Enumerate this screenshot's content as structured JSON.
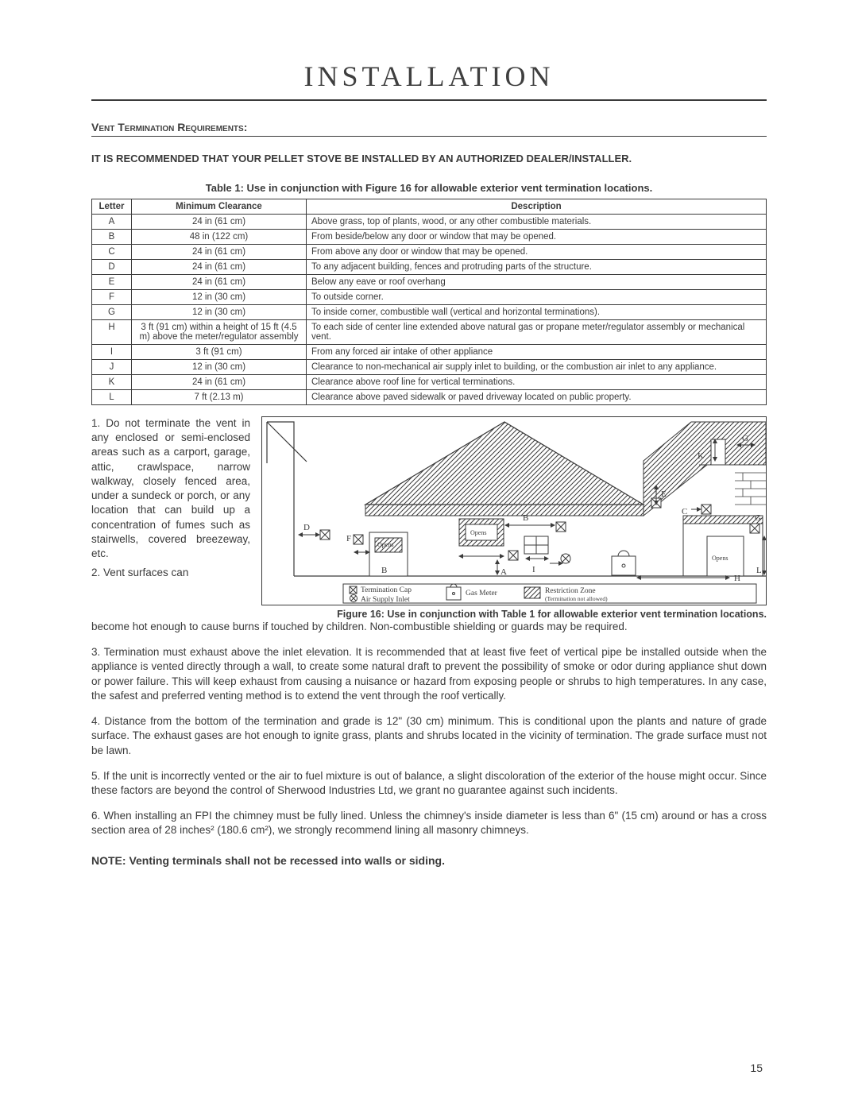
{
  "title": "Installation",
  "section_heading": "Vent Termination Requirements:",
  "recommend": "IT IS RECOMMENDED THAT YOUR PELLET STOVE BE INSTALLED BY AN AUTHORIZED DEALER/INSTALLER.",
  "table_caption": "Table 1: Use in conjunction with Figure 16 for allowable exterior vent termination locations.",
  "table": {
    "headers": [
      "Letter",
      "Minimum Clearance",
      "Description"
    ],
    "rows": [
      [
        "A",
        "24 in (61 cm)",
        "Above grass, top of plants, wood, or any other combustible materials."
      ],
      [
        "B",
        "48 in  (122 cm)",
        "From beside/below any door or window that may be opened."
      ],
      [
        "C",
        "24 in (61 cm)",
        "From above any door or window that may be opened."
      ],
      [
        "D",
        "24 in (61 cm)",
        "To any adjacent building, fences and protruding parts of the structure."
      ],
      [
        "E",
        "24 in (61 cm)",
        "Below any eave or roof overhang"
      ],
      [
        "F",
        "12 in (30 cm)",
        "To outside corner."
      ],
      [
        "G",
        "12 in (30 cm)",
        "To inside corner, combustible wall (vertical and horizontal terminations)."
      ],
      [
        "H",
        "3 ft (91 cm) within a height of 15 ft (4.5 m) above the meter/regulator assembly",
        "To each side of center line extended above natural gas or propane meter/regulator assembly or mechanical vent."
      ],
      [
        "I",
        "3 ft (91 cm)",
        "From any forced air intake of other appliance"
      ],
      [
        "J",
        "12 in (30 cm)",
        "Clearance to non-mechanical air supply inlet to building, or the combustion air inlet to any appliance."
      ],
      [
        "K",
        "24 in (61 cm)",
        "Clearance above roof line for vertical terminations."
      ],
      [
        "L",
        "7 ft (2.13 m)",
        "Clearance above paved sidewalk or paved driveway located on public property."
      ]
    ]
  },
  "notes": {
    "n1": "1.  Do not terminate the vent in any enclosed or semi-enclosed areas such as a carport, garage, attic, crawlspace, narrow walkway, closely fenced area, under a sundeck or porch, or any location that can build up a concentration of fumes such as stairwells, covered breezeway, etc.",
    "n2a": "2.   Vent surfaces can",
    "n2b": "become hot enough to cause burns if touched by children. Non-combustible shielding or guards may be required.",
    "n3": "3.  Termination must exhaust above the inlet elevation. It is recommended that at least five feet of vertical pipe be installed outside when the appliance is vented directly through a wall, to create some natural draft to prevent the possibility of smoke or odor during appliance shut down or power failure. This will keep exhaust from causing a nuisance or hazard from exposing people or shrubs to high temperatures. In any case, the safest and preferred venting method is to extend the vent through the roof vertically.",
    "n4": "4.  Distance from the bottom of the termination and grade is 12\" (30 cm) minimum. This is conditional upon the plants and nature of grade surface. The exhaust gases are hot enough to ignite grass, plants and shrubs located in the vicinity of termination. The grade surface must not be lawn.",
    "n5": "5.  If the unit is incorrectly vented or the air to fuel mixture is out of balance, a slight discoloration of the exterior of the house might occur. Since these factors are beyond the control of Sherwood Industries Ltd, we grant no guarantee against such incidents.",
    "n6": "6. When installing an FPI the chimney must be fully lined. Unless the chimney's inside diameter is less than 6\" (15 cm) around or has a cross section area of 28 inches² (180.6 cm²), we strongly recommend lining all masonry chimneys.",
    "final": "NOTE: Venting terminals shall not be recessed into walls or siding."
  },
  "figure_caption": "Figure 16: Use in conjunction with Table 1 for allowable exterior vent termination locations.",
  "legend": {
    "term_cap": "Termination Cap",
    "air_supply": "Air Supply Inlet",
    "gas_meter": "Gas Meter",
    "restriction": "Restriction Zone",
    "restriction_sub": "(Termination not allowed)"
  },
  "fig_labels": {
    "A": "A",
    "B": "B",
    "C": "C",
    "D": "D",
    "E": "E",
    "F": "F",
    "G": "G",
    "H": "H",
    "I": "I",
    "J": "J",
    "K": "K",
    "L": "L",
    "Opens": "Opens"
  },
  "page_number": "15",
  "colors": {
    "ink": "#3a3a3a",
    "bg": "#ffffff"
  }
}
